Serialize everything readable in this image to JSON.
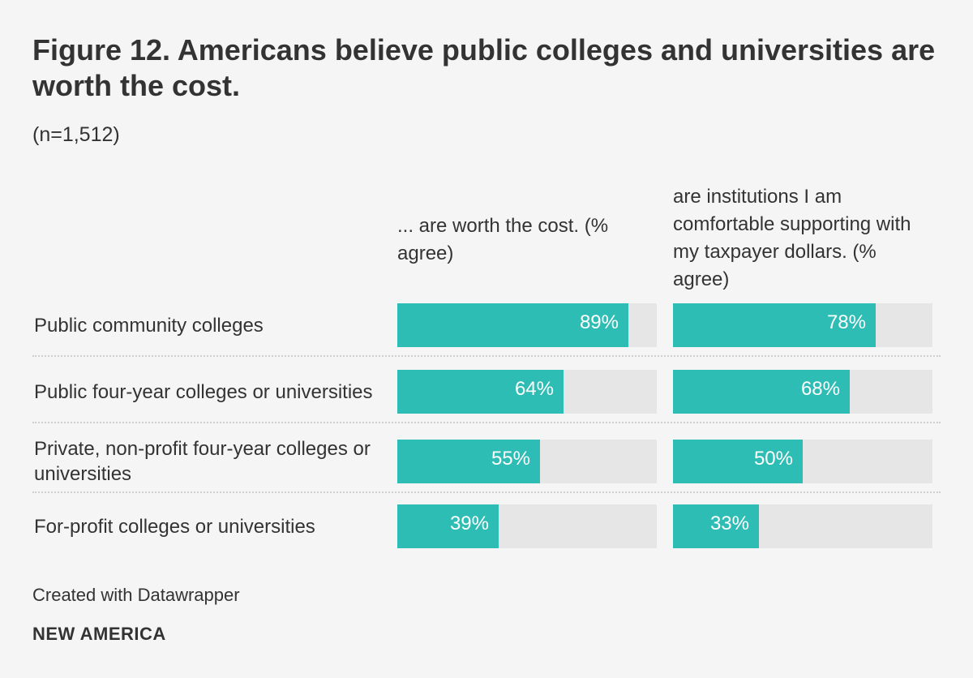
{
  "header": {
    "title": "Figure 12. Americans believe public colleges and universities are worth the cost.",
    "subtitle": "(n=1,512)"
  },
  "chart_data": {
    "type": "bar",
    "orientation": "horizontal",
    "title": "Figure 12. Americans believe public colleges and universities are worth the cost.",
    "subtitle": "(n=1,512)",
    "categories": [
      "Public community colleges",
      "Public four-year colleges or universities",
      "Private, non-profit four-year colleges or universities",
      "For-profit colleges or universities"
    ],
    "series": [
      {
        "name": "... are worth the cost. (% agree)",
        "values": [
          89,
          64,
          55,
          39
        ],
        "labels": [
          "89%",
          "64%",
          "55%",
          "39%"
        ]
      },
      {
        "name": "are institutions I am comfortable supporting with my taxpayer dollars. (% agree)",
        "values": [
          78,
          68,
          50,
          33
        ],
        "labels": [
          "78%",
          "68%",
          "50%",
          "33%"
        ]
      }
    ],
    "xlim": [
      0,
      100
    ],
    "colors": {
      "bar": "#2ebdb4",
      "track": "#e6e6e6",
      "label": "#ffffff"
    }
  },
  "footer": {
    "credit": "Created with Datawrapper",
    "brand": "NEW AMERICA"
  }
}
